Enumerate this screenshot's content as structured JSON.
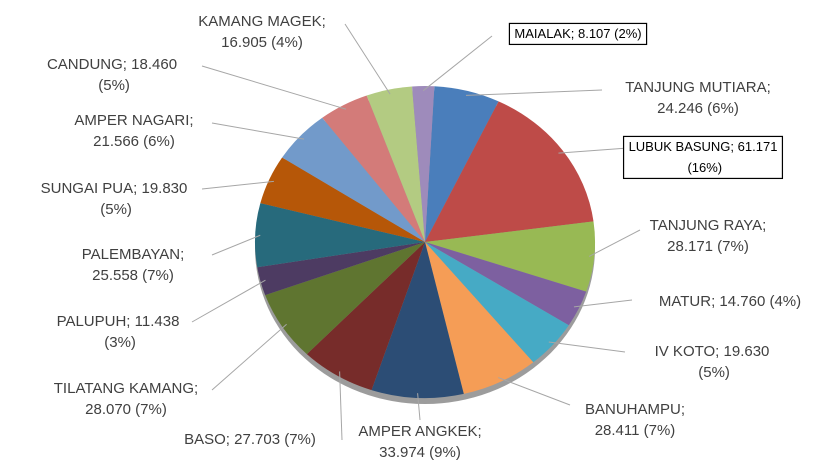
{
  "chart_data": {
    "type": "pie",
    "categories": [
      "TANJUNG MUTIARA;",
      "LUBUK BASUNG;",
      "TANJUNG RAYA;",
      "MATUR;",
      "IV KOTO;",
      "BANUHAMPU;",
      "AMPER ANGKEK;",
      "BASO;",
      "TILATANG KAMANG;",
      "PALUPUH;",
      "PALEMBAYAN;",
      "SUNGAI PUA;",
      "AMPER NAGARI;",
      "CANDUNG;",
      "KAMANG MAGEK;",
      "MAIALAK;"
    ],
    "values": [
      24.246,
      61.171,
      28.171,
      14.76,
      19.63,
      28.411,
      33.974,
      27.703,
      28.07,
      11.438,
      25.558,
      19.83,
      21.566,
      18.46,
      16.905,
      8.107
    ],
    "value_labels": [
      "24.246 (6%)",
      "61.171 (16%)",
      "28.171 (7%)",
      "14.760 (4%)",
      "19.630 (5%)",
      "28.411 (7%)",
      "33.974 (9%)",
      "27.703 (7%)",
      "28.070 (7%)",
      "11.438 (3%)",
      "25.558 (7%)",
      "19.830 (5%)",
      "21.566 (6%)",
      "18.460 (5%)",
      "16.905 (4%)",
      "8.107 (2%)"
    ],
    "colors": [
      "#4a7ebb",
      "#be4b48",
      "#98b954",
      "#7d60a0",
      "#46aac5",
      "#f59d56",
      "#2c4d75",
      "#772c2a",
      "#5f7530",
      "#4d3b62",
      "#276a7c",
      "#b65708",
      "#729aca",
      "#d37b79",
      "#b3cb82",
      "#9e8bbb"
    ],
    "boxed": [
      false,
      true,
      false,
      false,
      false,
      false,
      false,
      false,
      false,
      false,
      false,
      false,
      false,
      false,
      false,
      true
    ]
  }
}
